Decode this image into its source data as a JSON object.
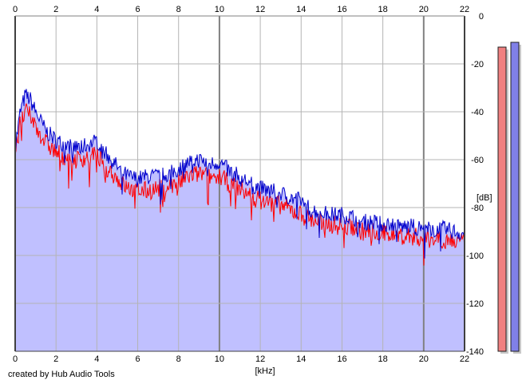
{
  "credit": "created by Hub Audio Tools",
  "colors": {
    "red_series": "#ff0000",
    "blue_series": "#0000cc",
    "fill": "#c0c0ff",
    "grid": "#b4b4b4",
    "major_grid": "#808080",
    "meter_left": "#f08080",
    "meter_right": "#8080e8"
  },
  "chart_data": {
    "type": "line",
    "title": "",
    "xlabel": "[kHz]",
    "ylabel": "[dB]",
    "xlim": [
      0,
      22
    ],
    "ylim": [
      -140,
      0
    ],
    "x_ticks": [
      "0",
      "2",
      "4",
      "6",
      "8",
      "10",
      "12",
      "14",
      "16",
      "18",
      "20",
      "22"
    ],
    "y_ticks": [
      "0",
      "-20",
      "-40",
      "-60",
      "-80",
      "-100",
      "-120",
      "-140"
    ],
    "grid": true,
    "series": [
      {
        "color": "#0000cc",
        "x": [
          0,
          0.25,
          0.5,
          0.75,
          1,
          1.5,
          2,
          2.5,
          3,
          3.5,
          4,
          4.5,
          5,
          5.5,
          6,
          6.5,
          7,
          7.5,
          8,
          8.5,
          9,
          9.5,
          10,
          10.5,
          11,
          11.5,
          12,
          12.5,
          13,
          13.5,
          14,
          14.5,
          15,
          15.5,
          16,
          16.5,
          17,
          17.5,
          18,
          18.5,
          19,
          19.5,
          20,
          20.5,
          21,
          21.5,
          22
        ],
        "y": [
          -55,
          -40,
          -33,
          -35,
          -40,
          -48,
          -52,
          -54,
          -55,
          -54,
          -52,
          -58,
          -63,
          -67,
          -68,
          -67,
          -67,
          -66,
          -64,
          -61,
          -60,
          -62,
          -61,
          -65,
          -67,
          -70,
          -72,
          -73,
          -74,
          -76,
          -77,
          -81,
          -82,
          -83,
          -83,
          -84,
          -86,
          -86,
          -87,
          -87,
          -88,
          -88,
          -89,
          -89,
          -89,
          -90,
          -91
        ]
      },
      {
        "color": "#ff0000",
        "x": [
          0,
          0.25,
          0.5,
          0.75,
          1,
          1.5,
          2,
          2.5,
          3,
          3.5,
          4,
          4.5,
          5,
          5.5,
          6,
          6.5,
          7,
          7.5,
          8,
          8.5,
          9,
          9.5,
          10,
          10.5,
          11,
          11.5,
          12,
          12.5,
          13,
          13.5,
          14,
          14.5,
          15,
          15.5,
          16,
          16.5,
          17,
          17.5,
          18,
          18.5,
          19,
          19.5,
          20,
          20.5,
          21,
          21.5,
          22
        ],
        "y": [
          -58,
          -45,
          -40,
          -42,
          -46,
          -53,
          -57,
          -59,
          -60,
          -59,
          -58,
          -63,
          -68,
          -72,
          -73,
          -73,
          -72,
          -71,
          -70,
          -67,
          -66,
          -67,
          -67,
          -70,
          -72,
          -75,
          -77,
          -78,
          -79,
          -81,
          -83,
          -85,
          -86,
          -87,
          -88,
          -88,
          -90,
          -90,
          -91,
          -91,
          -92,
          -92,
          -93,
          -93,
          -93,
          -94,
          -95
        ]
      }
    ],
    "meters": [
      {
        "color": "#f08080",
        "value_db": -13
      },
      {
        "color": "#8080e8",
        "value_db": -11
      }
    ]
  }
}
